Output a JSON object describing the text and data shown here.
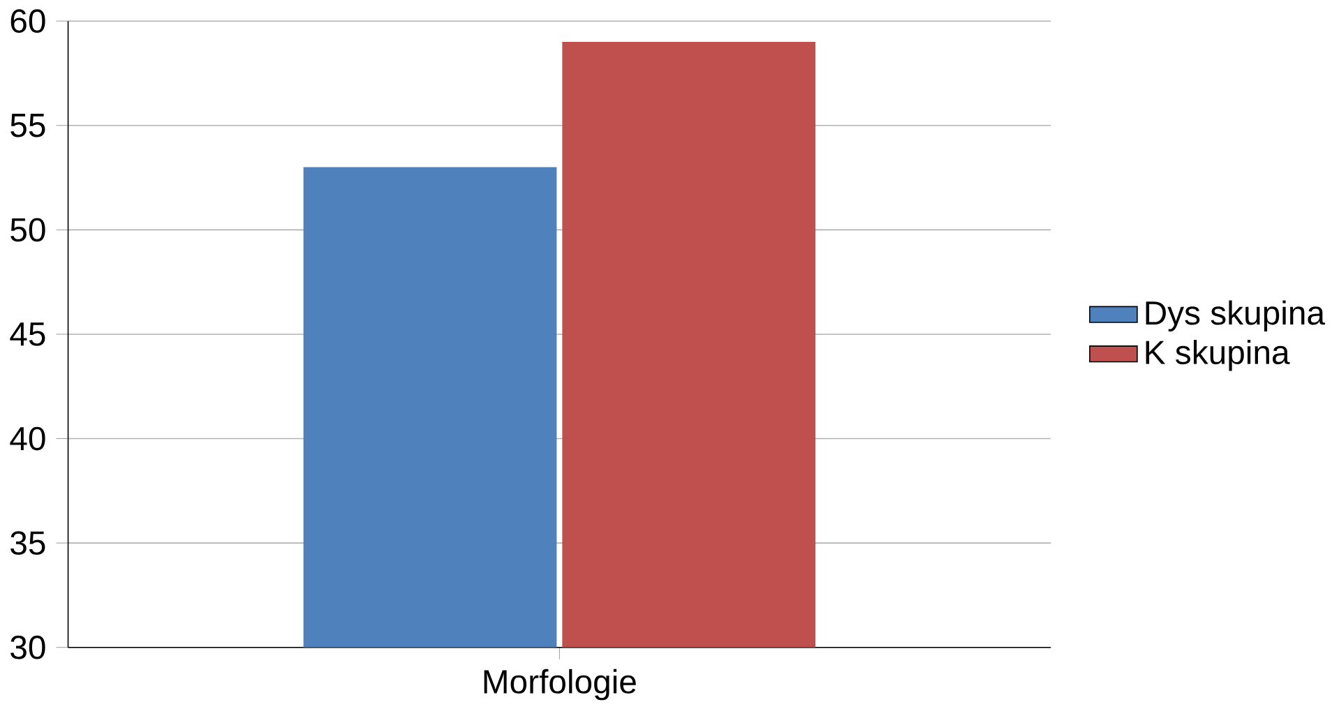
{
  "chart_data": {
    "type": "bar",
    "categories": [
      "Morfologie"
    ],
    "series": [
      {
        "name": "Dys skupina",
        "color": "#4f81bd",
        "values": [
          53
        ]
      },
      {
        "name": "K skupina",
        "color": "#c0504d",
        "values": [
          59
        ]
      }
    ],
    "ylim": [
      30,
      60
    ],
    "yticks": [
      30,
      35,
      40,
      45,
      50,
      55,
      60
    ],
    "grid": "y",
    "legend": "right"
  }
}
